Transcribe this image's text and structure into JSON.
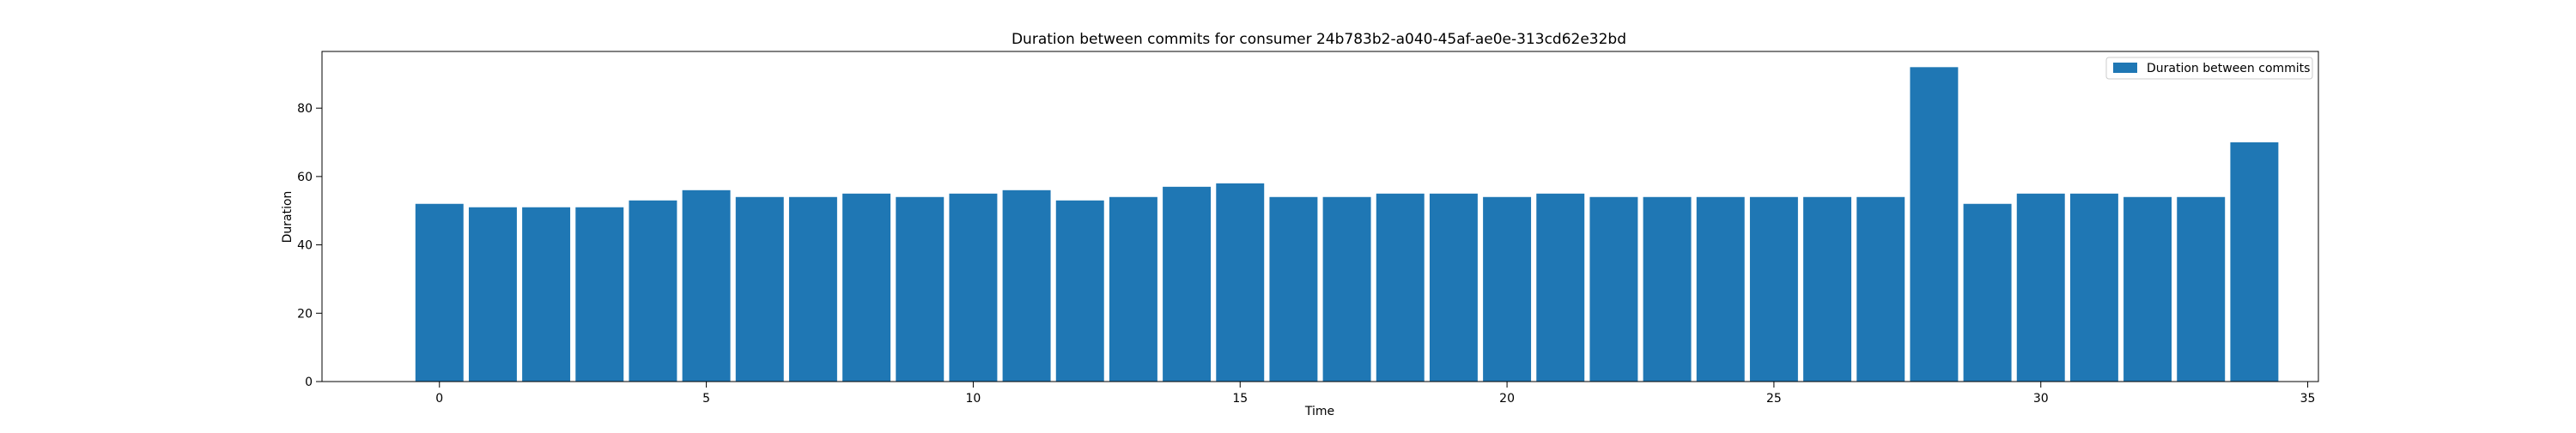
{
  "chart_data": {
    "type": "bar",
    "title": "Duration between commits for consumer 24b783b2-a040-45af-ae0e-313cd62e32bd",
    "xlabel": "Time",
    "ylabel": "Duration",
    "x": [
      0,
      1,
      2,
      3,
      4,
      5,
      6,
      7,
      8,
      9,
      10,
      11,
      12,
      13,
      14,
      15,
      16,
      17,
      18,
      19,
      20,
      21,
      22,
      23,
      24,
      25,
      26,
      27,
      28,
      29,
      30,
      31,
      32,
      33,
      34
    ],
    "series": [
      {
        "name": "Duration between commits",
        "values": [
          52,
          51,
          51,
          51,
          53,
          56,
          54,
          54,
          55,
          54,
          55,
          56,
          53,
          54,
          57,
          58,
          54,
          54,
          55,
          55,
          54,
          55,
          54,
          54,
          54,
          54,
          54,
          54,
          92,
          52,
          55,
          55,
          54,
          54,
          70
        ]
      }
    ],
    "xlim": [
      -2.2,
      35.2
    ],
    "ylim": [
      0,
      96.6
    ],
    "xticks": [
      0,
      5,
      10,
      15,
      20,
      25,
      30,
      35
    ],
    "yticks": [
      0,
      20,
      40,
      60,
      80
    ],
    "bar_color": "#1f77b4",
    "grid": false,
    "legend_position": "top-right"
  }
}
